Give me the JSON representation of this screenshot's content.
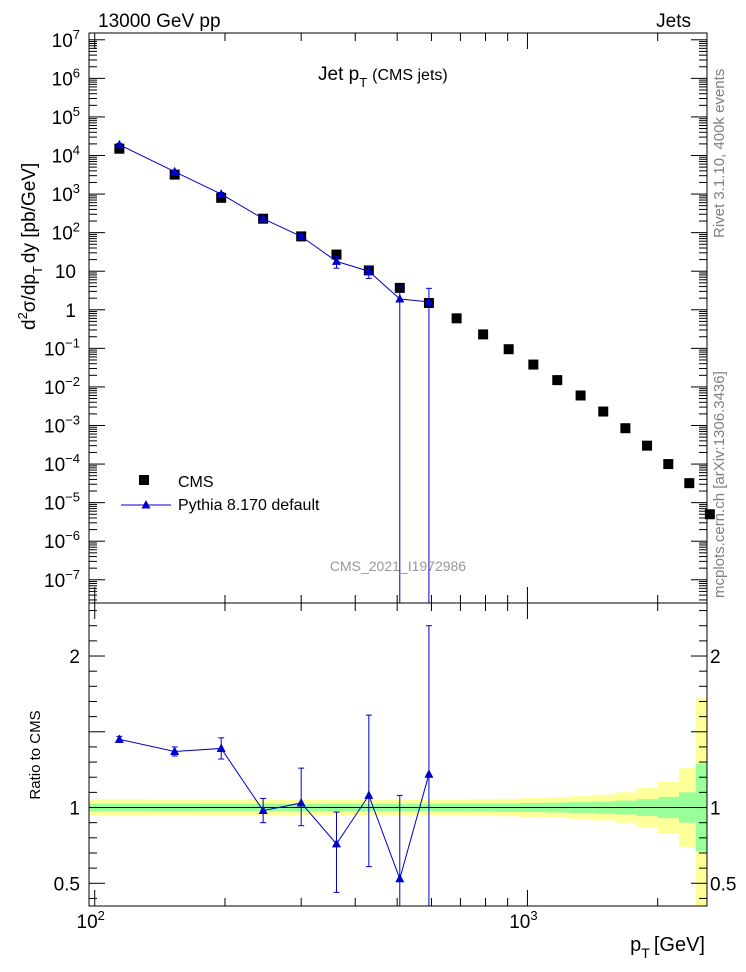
{
  "header": {
    "left": "13000 GeV pp",
    "right": "Jets"
  },
  "side_labels": {
    "rivet": "Rivet 3.1.10,  400k events",
    "mcplots": "mcplots.cern.ch [arXiv:1306.3436]"
  },
  "watermark": "CMS_2021_I1972986",
  "chart_data": {
    "type": "scatter",
    "title": "Jet p_T (CMS jets)",
    "title_main": "Jet p",
    "title_sub": "T",
    "title_paren": "(CMS jets)",
    "xlabel": "p_T [GeV]",
    "xlabel_main": "p",
    "xlabel_sub": "T",
    "xlabel_unit": "[GeV]",
    "xscale": "log",
    "xlim": [
      97,
      2600
    ],
    "xticks": [
      {
        "value": 100,
        "base": "10",
        "exp": "2"
      },
      {
        "value": 1000,
        "base": "10",
        "exp": "3"
      }
    ],
    "top": {
      "ylabel": "d²σ/dp_T dy [pb/GeV]",
      "ylabel_parts": {
        "d": "d",
        "sup": "2",
        "mid": "σ/dp",
        "sub": "T",
        "end": "dy [pb/GeV]"
      },
      "yscale": "log",
      "ylim": [
        2.5e-08,
        15000000.0
      ],
      "yticks": [
        {
          "value": 1e-07,
          "base": "10",
          "exp": "−7"
        },
        {
          "value": 1e-06,
          "base": "10",
          "exp": "−6"
        },
        {
          "value": 1e-05,
          "base": "10",
          "exp": "−5"
        },
        {
          "value": 0.0001,
          "base": "10",
          "exp": "−4"
        },
        {
          "value": 0.001,
          "base": "10",
          "exp": "−3"
        },
        {
          "value": 0.01,
          "base": "10",
          "exp": "−2"
        },
        {
          "value": 0.1,
          "base": "10",
          "exp": "−1"
        },
        {
          "value": 1,
          "base": "1",
          "exp": ""
        },
        {
          "value": 10,
          "base": "10",
          "exp": ""
        },
        {
          "value": 100,
          "base": "10",
          "exp": "2"
        },
        {
          "value": 1000,
          "base": "10",
          "exp": "3"
        },
        {
          "value": 10000,
          "base": "10",
          "exp": "4"
        },
        {
          "value": 100000,
          "base": "10",
          "exp": "5"
        },
        {
          "value": 1000000,
          "base": "10",
          "exp": "6"
        },
        {
          "value": 10000000,
          "base": "10",
          "exp": "7"
        }
      ],
      "legend_position": "bottom-left"
    },
    "bottom": {
      "ylabel": "Ratio to CMS",
      "ylim": [
        0.35,
        2.35
      ],
      "yticks": [
        {
          "value": 0.5,
          "label": "0.5"
        },
        {
          "value": 1,
          "label": "1"
        },
        {
          "value": 2,
          "label": "2"
        }
      ]
    },
    "series": [
      {
        "name": "CMS",
        "marker": "square",
        "color": "#000000",
        "x": [
          114,
          153,
          196,
          245,
          300,
          362,
          430,
          507,
          592,
          686,
          790,
          905,
          1032,
          1172,
          1327,
          1497,
          1684,
          1890,
          2116,
          2366,
          2640
        ],
        "y": [
          15000,
          3200,
          800,
          230,
          80,
          27,
          10.5,
          3.7,
          1.5,
          0.6,
          0.23,
          0.095,
          0.038,
          0.015,
          0.006,
          0.0023,
          0.00085,
          0.0003,
          0.0001,
          3.2e-05,
          5e-06
        ]
      },
      {
        "name": "Pythia 8.170 default",
        "marker": "triangle",
        "color": "#0000cc",
        "x": [
          114,
          153,
          196,
          245,
          300,
          362,
          430,
          507,
          592
        ],
        "y": [
          19000,
          3800,
          1000,
          230,
          80,
          18,
          10,
          1.9,
          1.6
        ],
        "y_err_low": [
          1500,
          300,
          100,
          20,
          10,
          6,
          3.5,
          1.9,
          1.6
        ],
        "y_err_high": [
          1500,
          300,
          100,
          20,
          10,
          6,
          3.5,
          2.0,
          2.0
        ],
        "ratio": [
          1.45,
          1.37,
          1.39,
          0.98,
          1.03,
          0.76,
          1.08,
          0.53,
          1.22
        ],
        "ratio_err_low": [
          0.02,
          0.03,
          0.07,
          0.08,
          0.15,
          0.32,
          0.47,
          0.53,
          0.87
        ],
        "ratio_err_high": [
          0.02,
          0.03,
          0.07,
          0.08,
          0.23,
          0.21,
          0.53,
          0.55,
          0.98
        ]
      }
    ],
    "bands": {
      "edges": [
        97,
        133,
        174,
        220,
        272,
        330,
        394,
        466,
        546,
        636,
        735,
        845,
        966,
        1100,
        1248,
        1411,
        1590,
        1788,
        2005,
        2241,
        2450,
        2600
      ],
      "inner_half_width": [
        0.025,
        0.025,
        0.024,
        0.024,
        0.024,
        0.024,
        0.024,
        0.024,
        0.025,
        0.026,
        0.027,
        0.028,
        0.03,
        0.033,
        0.036,
        0.04,
        0.046,
        0.055,
        0.07,
        0.1,
        0.29
      ],
      "outer_half_width": [
        0.055,
        0.05,
        0.05,
        0.05,
        0.05,
        0.05,
        0.05,
        0.05,
        0.05,
        0.052,
        0.055,
        0.058,
        0.062,
        0.068,
        0.075,
        0.085,
        0.1,
        0.13,
        0.17,
        0.26,
        0.72
      ],
      "inner_color": "#99ff99",
      "outer_color": "#ffff99"
    }
  }
}
